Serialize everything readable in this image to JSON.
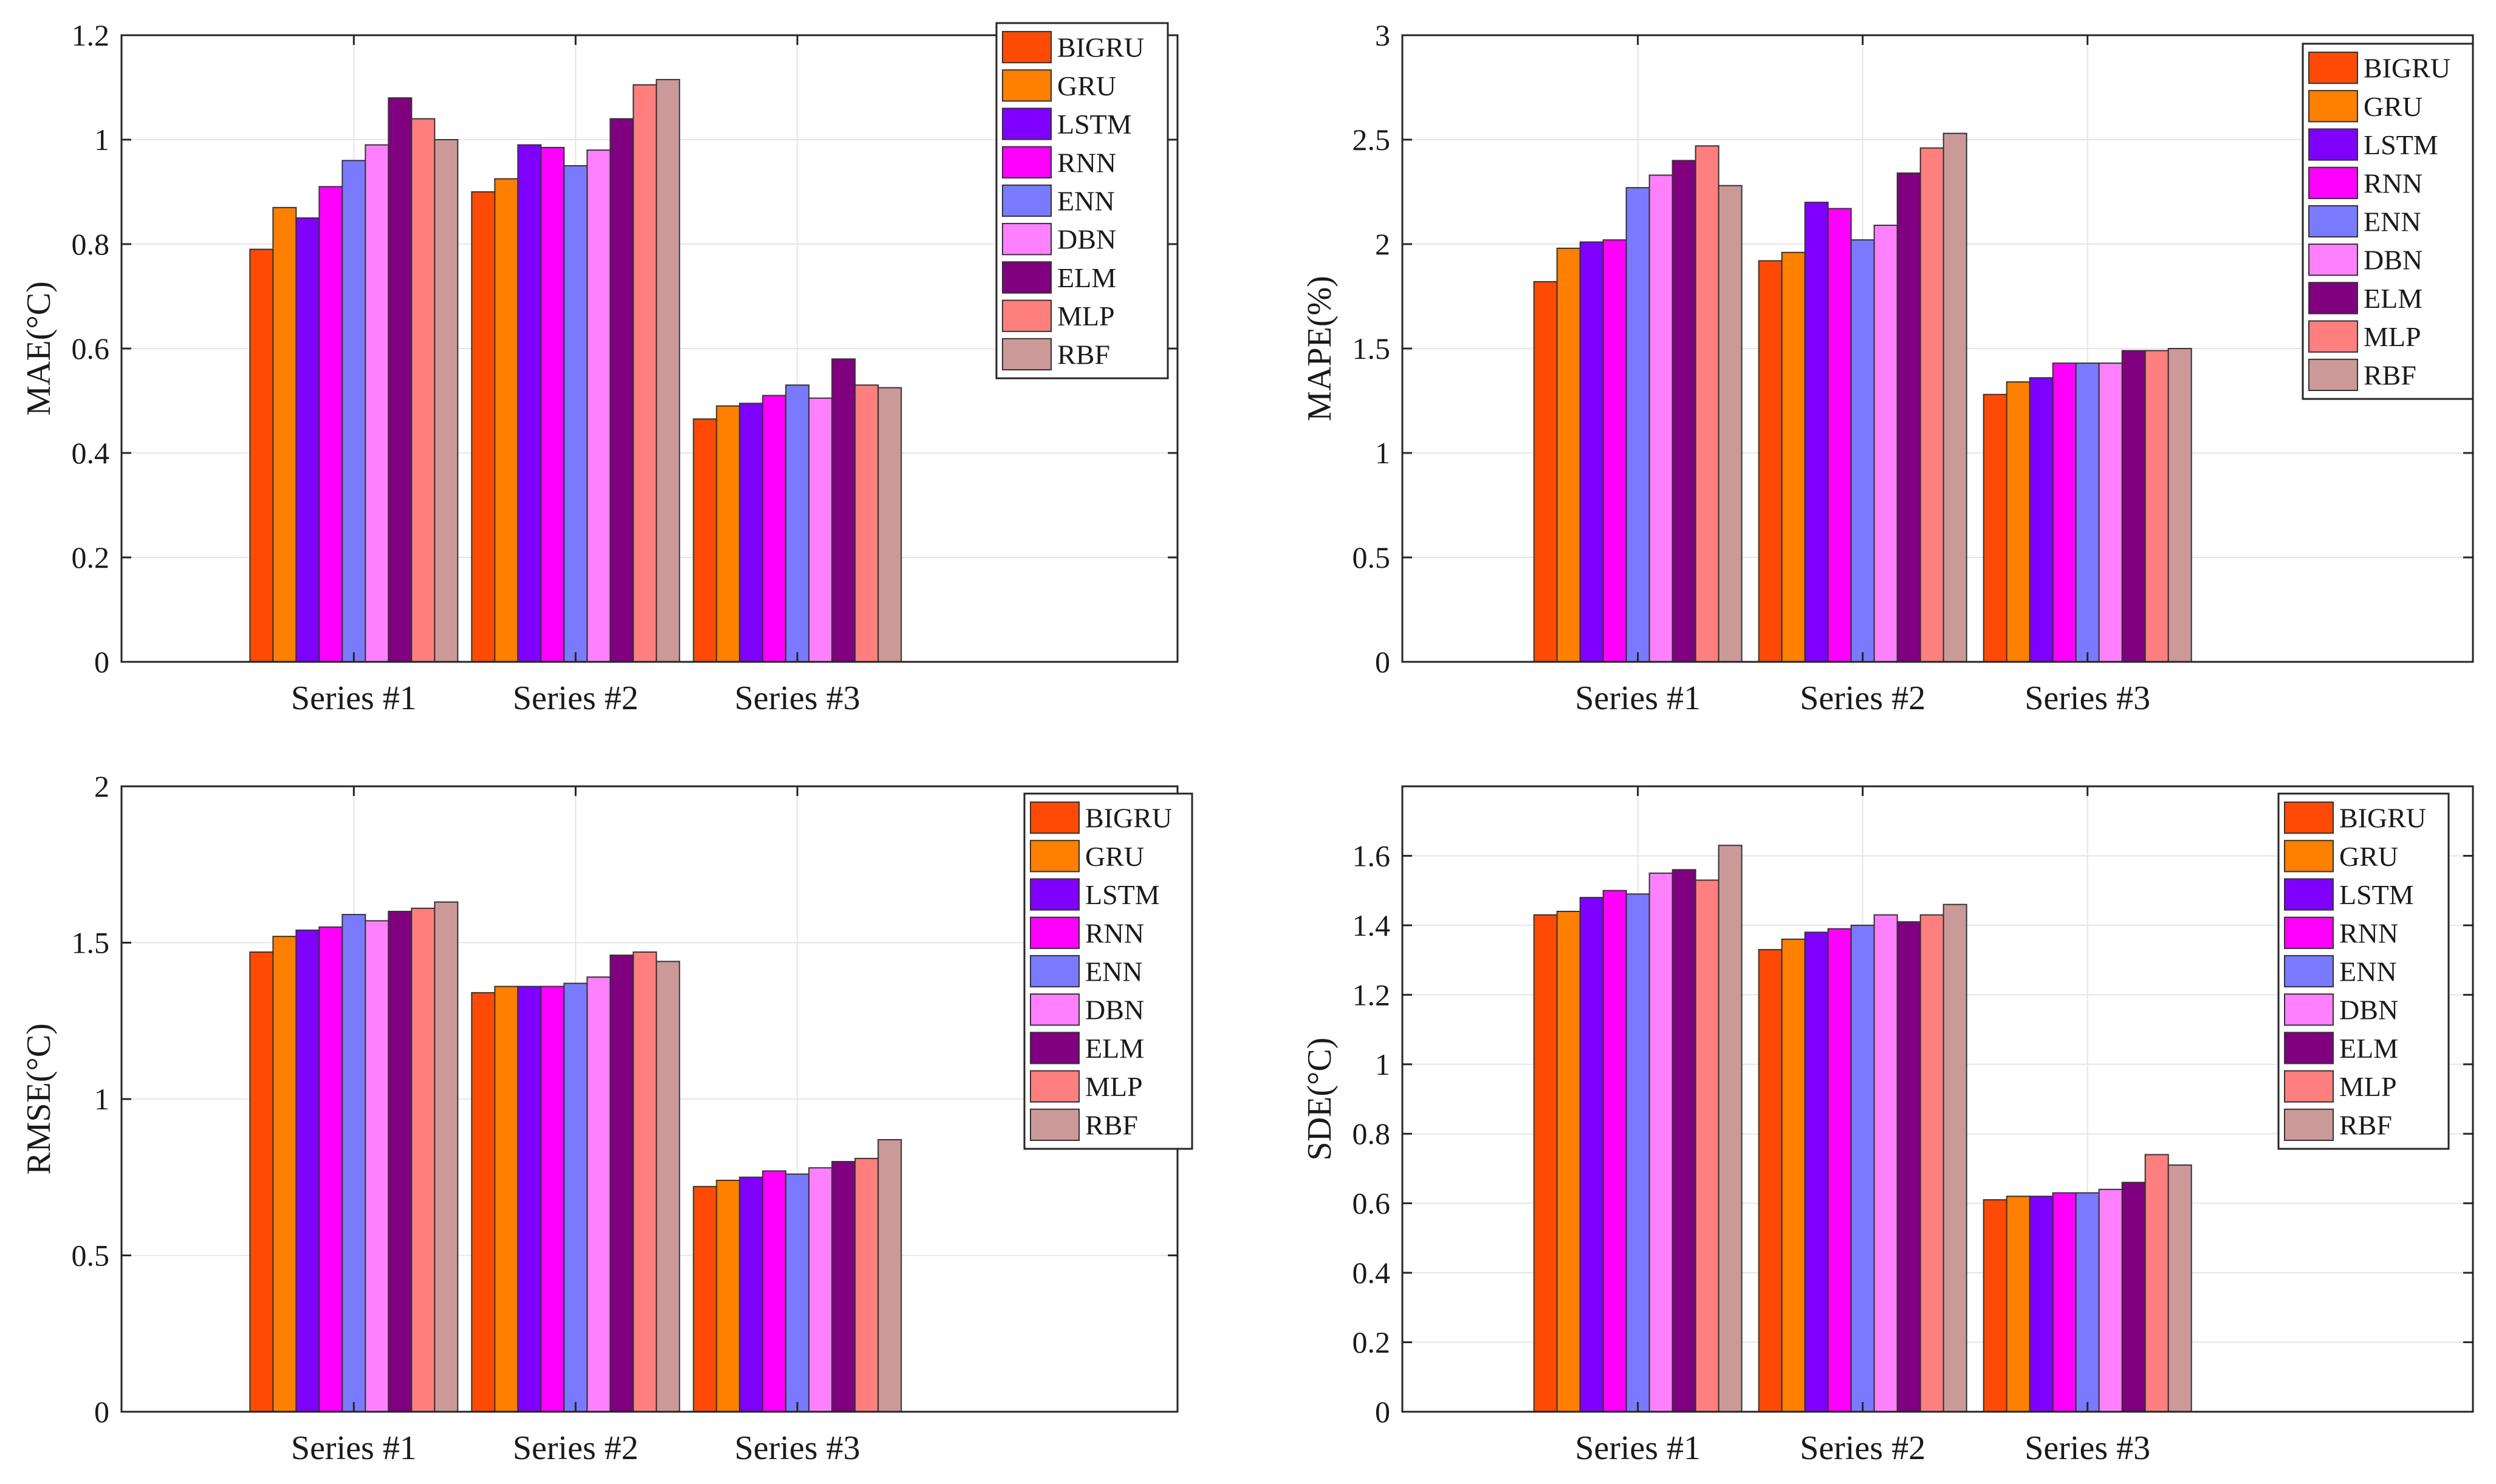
{
  "colors": {
    "BIGRU": "#ff4a05",
    "GRU": "#ff7f00",
    "LSTM": "#8000ff",
    "RNN": "#ff00ff",
    "ENN": "#7a7aff",
    "DBN": "#ff80ff",
    "ELM": "#800080",
    "MLP": "#ff7f7f",
    "RBF": "#cc9999",
    "grid": "#e6e6e6",
    "axis": "#262626"
  },
  "chart_data": [
    {
      "type": "bar",
      "id": "mae",
      "ylabel": "MAE(°C)",
      "ylim": [
        0,
        1.2
      ],
      "yticks": [
        0,
        0.2,
        0.4,
        0.6,
        0.8,
        1,
        1.2
      ],
      "ytick_labels": [
        "0",
        "0.2",
        "0.4",
        "0.6",
        "0.8",
        "1",
        "1.2"
      ],
      "categories": [
        "Series #1",
        "Series #2",
        "Series #3"
      ],
      "legend_position": "top-right",
      "grid": true,
      "series": [
        {
          "name": "BIGRU",
          "values": [
            0.79,
            0.9,
            0.465
          ]
        },
        {
          "name": "GRU",
          "values": [
            0.87,
            0.925,
            0.49
          ]
        },
        {
          "name": "LSTM",
          "values": [
            0.85,
            0.99,
            0.495
          ]
        },
        {
          "name": "RNN",
          "values": [
            0.91,
            0.985,
            0.51
          ]
        },
        {
          "name": "ENN",
          "values": [
            0.96,
            0.95,
            0.53
          ]
        },
        {
          "name": "DBN",
          "values": [
            0.99,
            0.98,
            0.505
          ]
        },
        {
          "name": "ELM",
          "values": [
            1.08,
            1.04,
            0.58
          ]
        },
        {
          "name": "MLP",
          "values": [
            1.04,
            1.105,
            0.53
          ]
        },
        {
          "name": "RBF",
          "values": [
            1.0,
            1.115,
            0.525
          ]
        }
      ]
    },
    {
      "type": "bar",
      "id": "mape",
      "ylabel": "MAPE(%)",
      "ylim": [
        0,
        3
      ],
      "yticks": [
        0,
        0.5,
        1,
        1.5,
        2,
        2.5,
        3
      ],
      "ytick_labels": [
        "0",
        "0.5",
        "1",
        "1.5",
        "2",
        "2.5",
        "3"
      ],
      "categories": [
        "Series #1",
        "Series #2",
        "Series #3"
      ],
      "legend_position": "top-right",
      "grid": true,
      "series": [
        {
          "name": "BIGRU",
          "values": [
            1.82,
            1.92,
            1.28
          ]
        },
        {
          "name": "GRU",
          "values": [
            1.98,
            1.96,
            1.34
          ]
        },
        {
          "name": "LSTM",
          "values": [
            2.01,
            2.2,
            1.36
          ]
        },
        {
          "name": "RNN",
          "values": [
            2.02,
            2.17,
            1.43
          ]
        },
        {
          "name": "ENN",
          "values": [
            2.27,
            2.02,
            1.43
          ]
        },
        {
          "name": "DBN",
          "values": [
            2.33,
            2.09,
            1.43
          ]
        },
        {
          "name": "ELM",
          "values": [
            2.4,
            2.34,
            1.49
          ]
        },
        {
          "name": "MLP",
          "values": [
            2.47,
            2.46,
            1.49
          ]
        },
        {
          "name": "RBF",
          "values": [
            2.28,
            2.53,
            1.5
          ]
        }
      ]
    },
    {
      "type": "bar",
      "id": "rmse",
      "ylabel": "RMSE(°C)",
      "ylim": [
        0,
        2
      ],
      "yticks": [
        0,
        0.5,
        1,
        1.5,
        2
      ],
      "ytick_labels": [
        "0",
        "0.5",
        "1",
        "1.5",
        "2"
      ],
      "categories": [
        "Series #1",
        "Series #2",
        "Series #3"
      ],
      "legend_position": "top-right",
      "grid": true,
      "series": [
        {
          "name": "BIGRU",
          "values": [
            1.47,
            1.34,
            0.72
          ]
        },
        {
          "name": "GRU",
          "values": [
            1.52,
            1.36,
            0.74
          ]
        },
        {
          "name": "LSTM",
          "values": [
            1.54,
            1.36,
            0.75
          ]
        },
        {
          "name": "RNN",
          "values": [
            1.55,
            1.36,
            0.77
          ]
        },
        {
          "name": "ENN",
          "values": [
            1.59,
            1.37,
            0.76
          ]
        },
        {
          "name": "DBN",
          "values": [
            1.57,
            1.39,
            0.78
          ]
        },
        {
          "name": "ELM",
          "values": [
            1.6,
            1.46,
            0.8
          ]
        },
        {
          "name": "MLP",
          "values": [
            1.61,
            1.47,
            0.81
          ]
        },
        {
          "name": "RBF",
          "values": [
            1.63,
            1.44,
            0.87
          ]
        }
      ]
    },
    {
      "type": "bar",
      "id": "sde",
      "ylabel": "SDE(°C)",
      "ylim": [
        0,
        1.8
      ],
      "yticks": [
        0,
        0.2,
        0.4,
        0.6,
        0.8,
        1,
        1.2,
        1.4,
        1.6
      ],
      "ytick_labels": [
        "0",
        "0.2",
        "0.4",
        "0.6",
        "0.8",
        "1",
        "1.2",
        "1.4",
        "1.6"
      ],
      "categories": [
        "Series #1",
        "Series #2",
        "Series #3"
      ],
      "legend_position": "top-right",
      "grid": true,
      "series": [
        {
          "name": "BIGRU",
          "values": [
            1.43,
            1.33,
            0.61
          ]
        },
        {
          "name": "GRU",
          "values": [
            1.44,
            1.36,
            0.62
          ]
        },
        {
          "name": "LSTM",
          "values": [
            1.48,
            1.38,
            0.62
          ]
        },
        {
          "name": "RNN",
          "values": [
            1.5,
            1.39,
            0.63
          ]
        },
        {
          "name": "ENN",
          "values": [
            1.49,
            1.4,
            0.63
          ]
        },
        {
          "name": "DBN",
          "values": [
            1.55,
            1.43,
            0.64
          ]
        },
        {
          "name": "ELM",
          "values": [
            1.56,
            1.41,
            0.66
          ]
        },
        {
          "name": "MLP",
          "values": [
            1.53,
            1.43,
            0.74
          ]
        },
        {
          "name": "RBF",
          "values": [
            1.63,
            1.46,
            0.71
          ]
        }
      ]
    }
  ]
}
